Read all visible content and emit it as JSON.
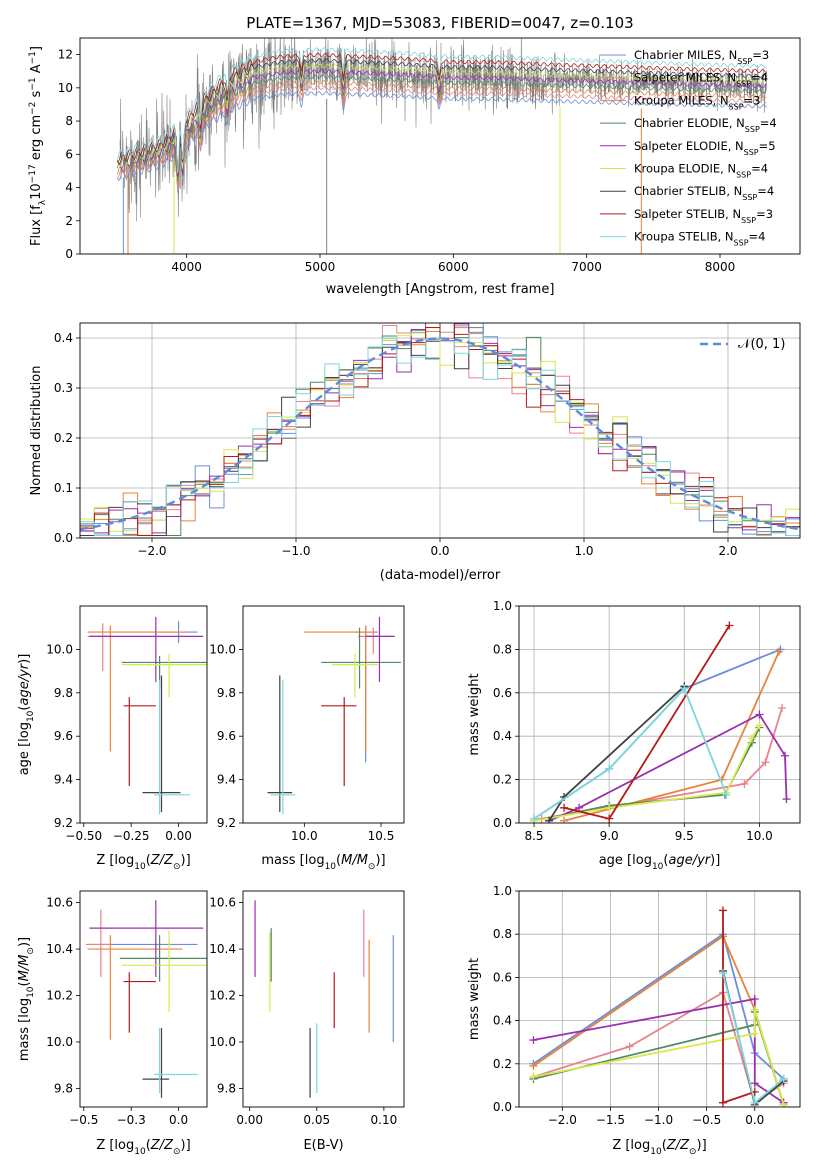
{
  "chart_data": [
    {
      "type": "line",
      "panel": "spectrum",
      "title": "PLATE=1367, MJD=53083, FIBERID=0047, z=0.103",
      "xlabel": "wavelength [Angstrom, rest frame]",
      "ylabel": "Flux [fλ10⁻¹⁷ erg cm⁻² s⁻¹ A⁻¹]",
      "xlim": [
        3200,
        8600
      ],
      "ylim": [
        0,
        13
      ],
      "xticks": [
        4000,
        5000,
        6000,
        7000,
        8000
      ],
      "yticks": [
        0,
        2,
        4,
        6,
        8,
        10,
        12
      ],
      "grid": false,
      "legend_position": "right",
      "data_series": {
        "name": "data",
        "color": "#808080",
        "x_range": [
          3500,
          8350
        ]
      },
      "model_series": [
        {
          "name": "Chabrier MILES, N",
          "sub": "SSP",
          "suffix": "=3",
          "color": "#6b8fd6"
        },
        {
          "name": "Salpeter MILES, N",
          "sub": "SSP",
          "suffix": "=4",
          "color": "#e8838e"
        },
        {
          "name": "Kroupa MILES, N",
          "sub": "SSP",
          "suffix": "=3",
          "color": "#e8833a"
        },
        {
          "name": "Chabrier ELODIE, N",
          "sub": "SSP",
          "suffix": "=4",
          "color": "#4f8a62"
        },
        {
          "name": "Salpeter ELODIE, N",
          "sub": "SSP",
          "suffix": "=5",
          "color": "#9b2fae"
        },
        {
          "name": "Kroupa ELODIE, N",
          "sub": "SSP",
          "suffix": "=4",
          "color": "#d9e84a"
        },
        {
          "name": "Chabrier STELIB, N",
          "sub": "SSP",
          "suffix": "=4",
          "color": "#404040"
        },
        {
          "name": "Salpeter STELIB, N",
          "sub": "SSP",
          "suffix": "=3",
          "color": "#b31b1b"
        },
        {
          "name": "Kroupa STELIB, N",
          "sub": "SSP",
          "suffix": "=4",
          "color": "#7dd6e0"
        }
      ],
      "continuum_points": [
        [
          3480,
          5.3
        ],
        [
          3600,
          5.6
        ],
        [
          3800,
          6.1
        ],
        [
          3950,
          7.0
        ],
        [
          4100,
          8.4
        ],
        [
          4300,
          9.8
        ],
        [
          4500,
          10.6
        ],
        [
          4700,
          10.9
        ],
        [
          5000,
          11.0
        ],
        [
          5300,
          10.9
        ],
        [
          5600,
          10.8
        ],
        [
          6000,
          10.6
        ],
        [
          6300,
          10.6
        ],
        [
          6600,
          10.5
        ],
        [
          7000,
          10.4
        ],
        [
          7400,
          10.3
        ],
        [
          7800,
          10.2
        ],
        [
          8300,
          10.1
        ]
      ]
    },
    {
      "type": "step",
      "panel": "residual-histogram",
      "xlabel": "(data-model)/error",
      "ylabel": "Normed distribution",
      "xlim": [
        -2.5,
        2.5
      ],
      "ylim": [
        0,
        0.43
      ],
      "xticks": [
        -2,
        -1,
        0,
        1,
        2
      ],
      "yticks": [
        0.0,
        0.1,
        0.2,
        0.3,
        0.4
      ],
      "grid": true,
      "legend": "𝒩(0, 1)",
      "legend_position": "top-right",
      "reference_curve": {
        "type": "gaussian",
        "mean": 0,
        "sigma": 1,
        "color": "#5b8bdc"
      }
    },
    {
      "type": "errorbar",
      "panel": "age-vs-Z",
      "xlabel": "Z [log10(Z/Z⊙)]",
      "ylabel": "age  [log10(age/yr)]",
      "xlim": [
        -0.52,
        0.15
      ],
      "ylim": [
        9.2,
        10.2
      ],
      "xticks": [
        -0.5,
        -0.25,
        0.0
      ],
      "yticks": [
        9.2,
        9.4,
        9.6,
        9.8,
        10.0
      ],
      "points": [
        {
          "color": "#6b8fd6",
          "x": 0.0,
          "xerr": [
            0.1,
            0.1
          ],
          "y": 10.08,
          "yerr": [
            0.05,
            0.05
          ]
        },
        {
          "color": "#e8838e",
          "x": -0.4,
          "xerr": [
            0.08,
            0.06
          ],
          "y": 10.06,
          "yerr": [
            0.16,
            0.06
          ]
        },
        {
          "color": "#e8833a",
          "x": -0.36,
          "xerr": [
            0.12,
            0.4
          ],
          "y": 10.08,
          "yerr": [
            0.55,
            0.03
          ]
        },
        {
          "color": "#4f8a62",
          "x": -0.1,
          "xerr": [
            0.2,
            0.25
          ],
          "y": 9.94,
          "yerr": [
            0.12,
            0.03
          ]
        },
        {
          "color": "#9b2fae",
          "x": -0.12,
          "xerr": [
            0.35,
            0.25
          ],
          "y": 10.06,
          "yerr": [
            0.21,
            0.09
          ]
        },
        {
          "color": "#d9e84a",
          "x": -0.05,
          "xerr": [
            0.25,
            0.2
          ],
          "y": 9.93,
          "yerr": [
            0.15,
            0.05
          ]
        },
        {
          "color": "#404040",
          "x": -0.09,
          "xerr": [
            0.1,
            0.1
          ],
          "y": 9.34,
          "yerr": [
            0.09,
            0.54
          ]
        },
        {
          "color": "#b31b1b",
          "x": -0.26,
          "xerr": [
            0.03,
            0.14
          ],
          "y": 9.74,
          "yerr": [
            0.37,
            0.04
          ]
        },
        {
          "color": "#7dd6e0",
          "x": -0.1,
          "xerr": [
            0.03,
            0.16
          ],
          "y": 9.33,
          "yerr": [
            0.09,
            0.53
          ]
        }
      ]
    },
    {
      "type": "errorbar",
      "panel": "age-vs-mass",
      "xlabel": "mass [log10(M/M⊙)]",
      "ylabel": "",
      "xlim": [
        9.6,
        10.65
      ],
      "ylim": [
        9.2,
        10.2
      ],
      "xticks": [
        10.0,
        10.5
      ],
      "yticks": [
        9.2,
        9.4,
        9.6,
        9.8,
        10.0
      ],
      "points": [
        {
          "color": "#6b8fd6",
          "x": 10.4,
          "xerr": [
            0.07,
            0.08
          ],
          "y": 10.08,
          "yerr": [
            0.6,
            0.03
          ]
        },
        {
          "color": "#e8838e",
          "x": 10.45,
          "xerr": [
            0.1,
            0.13
          ],
          "y": 10.06,
          "yerr": [
            0.08,
            0.04
          ]
        },
        {
          "color": "#e8833a",
          "x": 10.4,
          "xerr": [
            0.4,
            0.06
          ],
          "y": 10.08,
          "yerr": [
            0.55,
            0.03
          ]
        },
        {
          "color": "#4f8a62",
          "x": 10.36,
          "xerr": [
            0.25,
            0.27
          ],
          "y": 9.94,
          "yerr": [
            0.12,
            0.16
          ]
        },
        {
          "color": "#9b2fae",
          "x": 10.49,
          "xerr": [
            0.09,
            0.1
          ],
          "y": 10.06,
          "yerr": [
            0.21,
            0.09
          ]
        },
        {
          "color": "#d9e84a",
          "x": 10.33,
          "xerr": [
            0.15,
            0.15
          ],
          "y": 9.93,
          "yerr": [
            0.15,
            0.05
          ]
        },
        {
          "color": "#404040",
          "x": 9.84,
          "xerr": [
            0.08,
            0.08
          ],
          "y": 9.34,
          "yerr": [
            0.09,
            0.54
          ]
        },
        {
          "color": "#b31b1b",
          "x": 10.26,
          "xerr": [
            0.15,
            0.08
          ],
          "y": 9.74,
          "yerr": [
            0.37,
            0.04
          ]
        },
        {
          "color": "#7dd6e0",
          "x": 9.86,
          "xerr": [
            0.08,
            0.08
          ],
          "y": 9.33,
          "yerr": [
            0.09,
            0.53
          ]
        }
      ]
    },
    {
      "type": "line",
      "panel": "mass-weight-vs-age",
      "xlabel": "age  [log10(age/yr)]",
      "ylabel": "mass weight",
      "xlim": [
        8.4,
        10.27
      ],
      "ylim": [
        0,
        1
      ],
      "xticks": [
        8.5,
        9.0,
        9.5,
        10.0
      ],
      "yticks": [
        0.0,
        0.2,
        0.4,
        0.6,
        0.8,
        1.0
      ],
      "grid": true,
      "series": [
        {
          "color": "#6b8fd6",
          "x": [
            8.5,
            9.0,
            9.5,
            10.14
          ],
          "y": [
            0.02,
            0.25,
            0.62,
            0.8
          ]
        },
        {
          "color": "#e8838e",
          "x": [
            8.55,
            9.9,
            10.04,
            10.15
          ],
          "y": [
            0.02,
            0.18,
            0.28,
            0.53
          ]
        },
        {
          "color": "#e8833a",
          "x": [
            8.7,
            9.75,
            10.13
          ],
          "y": [
            0.01,
            0.2,
            0.79
          ]
        },
        {
          "color": "#4f8a62",
          "x": [
            8.5,
            9.0,
            9.77,
            9.95,
            10.0
          ],
          "y": [
            0.01,
            0.08,
            0.13,
            0.37,
            0.44
          ]
        },
        {
          "color": "#9b2fae",
          "x": [
            8.6,
            8.8,
            10.0,
            10.17,
            10.18
          ],
          "y": [
            0.01,
            0.07,
            0.5,
            0.31,
            0.11
          ]
        },
        {
          "color": "#d9e84a",
          "x": [
            8.5,
            9.0,
            9.78,
            9.95,
            10.0
          ],
          "y": [
            0.01,
            0.07,
            0.14,
            0.39,
            0.45
          ]
        },
        {
          "color": "#404040",
          "x": [
            8.6,
            8.7,
            9.5
          ],
          "y": [
            0.01,
            0.12,
            0.63
          ]
        },
        {
          "color": "#b31b1b",
          "x": [
            8.7,
            9.0,
            9.8
          ],
          "y": [
            0.07,
            0.02,
            0.91
          ]
        },
        {
          "color": "#7dd6e0",
          "x": [
            8.5,
            9.0,
            9.5,
            9.78
          ],
          "y": [
            0.02,
            0.25,
            0.62,
            0.13
          ]
        }
      ]
    },
    {
      "type": "errorbar",
      "panel": "mass-vs-Z",
      "xlabel": "Z [log10(Z/Z⊙)]",
      "ylabel": "mass [log10(M/M⊙)]",
      "xlim": [
        -0.52,
        0.15
      ],
      "ylim": [
        9.72,
        10.65
      ],
      "xticks": [
        -0.5,
        -0.25,
        0.0
      ],
      "yticks": [
        9.8,
        10.0,
        10.2,
        10.4,
        10.6
      ],
      "points": [
        {
          "color": "#6b8fd6",
          "x": -0.1,
          "xerr": [
            0.38,
            0.2
          ],
          "y": 10.42,
          "yerr": [
            0,
            0
          ]
        },
        {
          "color": "#e8838e",
          "x": -0.41,
          "xerr": [
            0.08,
            0.05
          ],
          "y": 10.42,
          "yerr": [
            0.14,
            0.15
          ]
        },
        {
          "color": "#e8833a",
          "x": -0.36,
          "xerr": [
            0.12,
            0.38
          ],
          "y": 10.4,
          "yerr": [
            0.39,
            0.06
          ]
        },
        {
          "color": "#4f8a62",
          "x": -0.1,
          "xerr": [
            0.21,
            0.25
          ],
          "y": 10.36,
          "yerr": [
            0.1,
            0.1
          ]
        },
        {
          "color": "#9b2fae",
          "x": -0.12,
          "xerr": [
            0.35,
            0.25
          ],
          "y": 10.49,
          "yerr": [
            0.21,
            0.12
          ]
        },
        {
          "color": "#d9e84a",
          "x": -0.05,
          "xerr": [
            0.25,
            0.2
          ],
          "y": 10.33,
          "yerr": [
            0.2,
            0.15
          ]
        },
        {
          "color": "#404040",
          "x": -0.09,
          "xerr": [
            0.1,
            0.04
          ],
          "y": 9.84,
          "yerr": [
            0.08,
            0.22
          ]
        },
        {
          "color": "#b31b1b",
          "x": -0.26,
          "xerr": [
            0.03,
            0.14
          ],
          "y": 10.26,
          "yerr": [
            0.22,
            0.04
          ]
        },
        {
          "color": "#7dd6e0",
          "x": -0.1,
          "xerr": [
            0.03,
            0.2
          ],
          "y": 9.86,
          "yerr": [
            0.08,
            0.2
          ]
        }
      ]
    },
    {
      "type": "errorbar",
      "panel": "mass-vs-EBV",
      "xlabel": "E(B-V)",
      "ylabel": "",
      "xlim": [
        -0.005,
        0.115
      ],
      "ylim": [
        9.72,
        10.65
      ],
      "xticks": [
        0.0,
        0.05,
        0.1
      ],
      "yticks": [
        9.8,
        10.0,
        10.2,
        10.4,
        10.6
      ],
      "points": [
        {
          "color": "#6b8fd6",
          "x": 0.107,
          "y": 10.23,
          "yerr": [
            0.23,
            0.23
          ]
        },
        {
          "color": "#e8838e",
          "x": 0.085,
          "y": 10.42,
          "yerr": [
            0.14,
            0.15
          ]
        },
        {
          "color": "#e8833a",
          "x": 0.089,
          "y": 10.24,
          "yerr": [
            0.2,
            0.2
          ]
        },
        {
          "color": "#4f8a62",
          "x": 0.016,
          "y": 10.36,
          "yerr": [
            0.1,
            0.13
          ]
        },
        {
          "color": "#9b2fae",
          "x": 0.004,
          "y": 10.44,
          "yerr": [
            0.16,
            0.17
          ]
        },
        {
          "color": "#d9e84a",
          "x": 0.015,
          "y": 10.3,
          "yerr": [
            0.17,
            0.17
          ]
        },
        {
          "color": "#404040",
          "x": 0.045,
          "y": 9.91,
          "yerr": [
            0.15,
            0.15
          ]
        },
        {
          "color": "#b31b1b",
          "x": 0.063,
          "y": 10.18,
          "yerr": [
            0.12,
            0.12
          ]
        },
        {
          "color": "#7dd6e0",
          "x": 0.05,
          "y": 9.93,
          "yerr": [
            0.15,
            0.15
          ]
        }
      ]
    },
    {
      "type": "line",
      "panel": "mass-weight-vs-Z",
      "xlabel": "Z [log10(Z/Z⊙)]",
      "ylabel": "mass weight",
      "xlim": [
        -2.45,
        0.47
      ],
      "ylim": [
        0,
        1
      ],
      "xticks": [
        -2.0,
        -1.5,
        -1.0,
        -0.5,
        0.0
      ],
      "yticks": [
        0.0,
        0.2,
        0.4,
        0.6,
        0.8,
        1.0
      ],
      "grid": true,
      "series": [
        {
          "color": "#6b8fd6",
          "x": [
            -2.3,
            -0.33,
            0.0,
            0.3
          ],
          "y": [
            0.2,
            0.8,
            0.25,
            0.13
          ]
        },
        {
          "color": "#e8838e",
          "x": [
            -2.3,
            -1.3,
            -0.33,
            0.0,
            0.3
          ],
          "y": [
            0.14,
            0.28,
            0.53,
            0.02,
            0.11
          ]
        },
        {
          "color": "#e8833a",
          "x": [
            -2.3,
            -0.33,
            0.0,
            0.3
          ],
          "y": [
            0.19,
            0.79,
            0.45,
            0.01
          ]
        },
        {
          "color": "#4f8a62",
          "x": [
            -2.3,
            0.0,
            0.0,
            0.3
          ],
          "y": [
            0.13,
            0.38,
            0.44,
            0.01
          ]
        },
        {
          "color": "#9b2fae",
          "x": [
            -2.3,
            0.0,
            0.0,
            0.3
          ],
          "y": [
            0.31,
            0.5,
            0.11,
            0.02
          ]
        },
        {
          "color": "#d9e84a",
          "x": [
            -2.3,
            0.0,
            0.0,
            0.3
          ],
          "y": [
            0.14,
            0.34,
            0.45,
            0.01
          ]
        },
        {
          "color": "#404040",
          "x": [
            -0.33,
            0.0,
            0.3
          ],
          "y": [
            0.63,
            0.01,
            0.12
          ]
        },
        {
          "color": "#b31b1b",
          "x": [
            -0.33,
            -0.33,
            0.0
          ],
          "y": [
            0.91,
            0.02,
            0.07
          ]
        },
        {
          "color": "#7dd6e0",
          "x": [
            -0.33,
            0.0,
            0.3
          ],
          "y": [
            0.62,
            0.02,
            0.13
          ]
        }
      ]
    }
  ]
}
